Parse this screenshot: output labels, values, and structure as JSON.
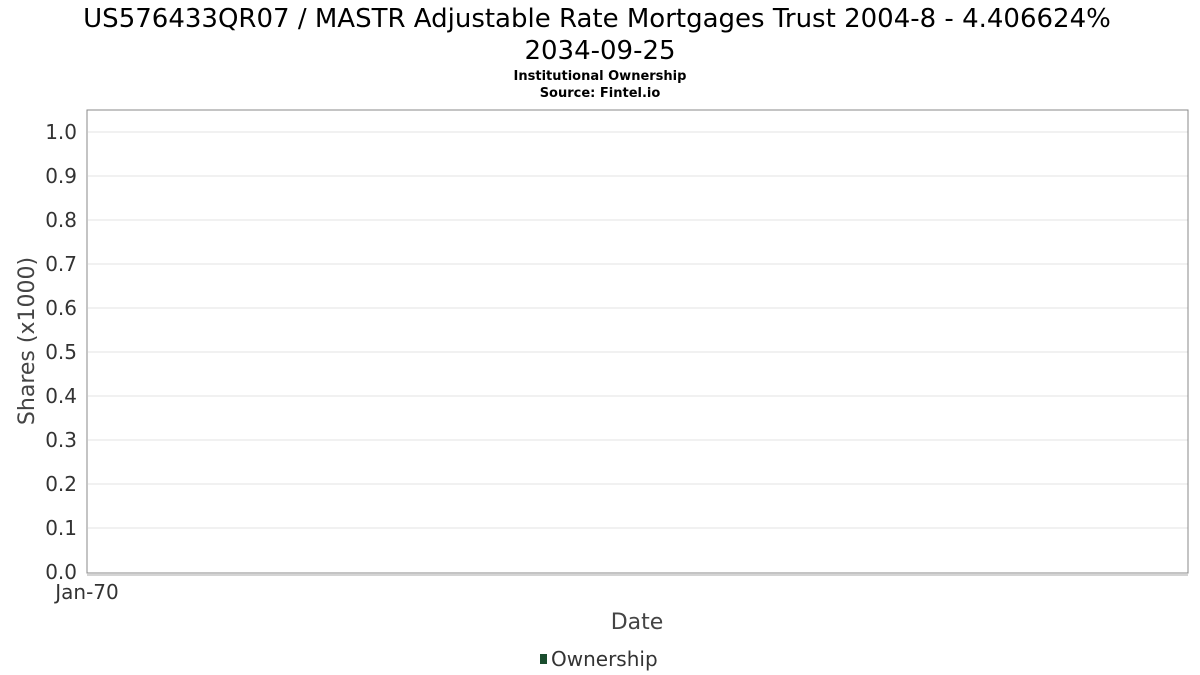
{
  "chart_data": {
    "type": "line",
    "title_line1": "US576433QR07 / MASTR Adjustable Rate Mortgages Trust 2004-8 - 4.406624%",
    "title_line2": "2034-09-25",
    "subtitle_line1": "Institutional Ownership",
    "subtitle_line2": "Source: Fintel.io",
    "xlabel": "Date",
    "ylabel": "Shares (x1000)",
    "ylim": [
      0,
      1.0
    ],
    "y_ticks": [
      "0.0",
      "0.1",
      "0.2",
      "0.3",
      "0.4",
      "0.5",
      "0.6",
      "0.7",
      "0.8",
      "0.9",
      "1.0"
    ],
    "x_ticks": [
      "Jan-70"
    ],
    "grid": true,
    "legend_position": "bottom",
    "series": [
      {
        "name": "Ownership",
        "color": "#1a4d2e",
        "x": [],
        "y": []
      }
    ]
  }
}
